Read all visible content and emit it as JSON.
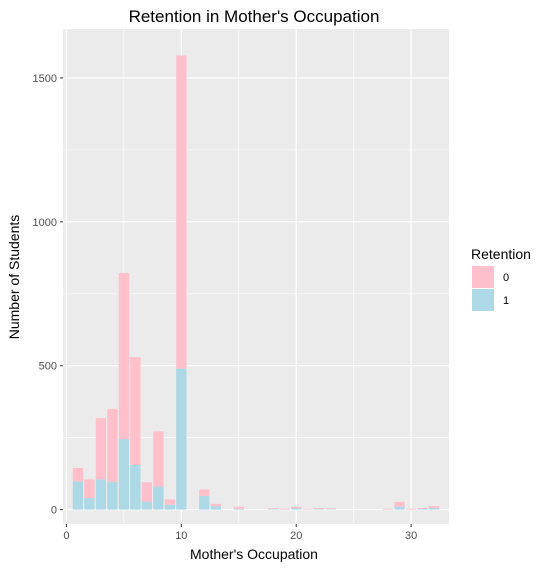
{
  "chart_data": {
    "type": "bar",
    "stacked": true,
    "title": "Retention in Mother's Occupation",
    "xlabel": "Mother's Occupation",
    "ylabel": "Number of Students",
    "xlim": [
      -0.3,
      33.3
    ],
    "ylim": [
      -50,
      1670
    ],
    "x_ticks": [
      0,
      10,
      20,
      30
    ],
    "y_ticks": [
      0,
      500,
      1000,
      1500
    ],
    "grid": true,
    "legend": {
      "title": "Retention",
      "position": "right"
    },
    "x": [
      1,
      2,
      3,
      4,
      5,
      6,
      7,
      8,
      9,
      10,
      11,
      12,
      13,
      14,
      15,
      16,
      17,
      18,
      19,
      20,
      21,
      22,
      23,
      24,
      25,
      26,
      27,
      28,
      29,
      30,
      31,
      32
    ],
    "series": [
      {
        "name": "1",
        "color": "#ADD8E6",
        "values": [
          98,
          40,
          105,
          97,
          245,
          155,
          28,
          80,
          17,
          490,
          0,
          48,
          12,
          0,
          3,
          0,
          0,
          2,
          0,
          4,
          0,
          2,
          1,
          0,
          0,
          0,
          0,
          0,
          10,
          0,
          2,
          5
        ]
      },
      {
        "name": "0",
        "color": "#FFC0CB",
        "values": [
          47,
          65,
          213,
          253,
          577,
          375,
          67,
          192,
          18,
          1088,
          0,
          22,
          8,
          0,
          7,
          0,
          0,
          3,
          3,
          6,
          2,
          4,
          3,
          0,
          0,
          0,
          0,
          3,
          17,
          3,
          4,
          7
        ]
      }
    ]
  }
}
